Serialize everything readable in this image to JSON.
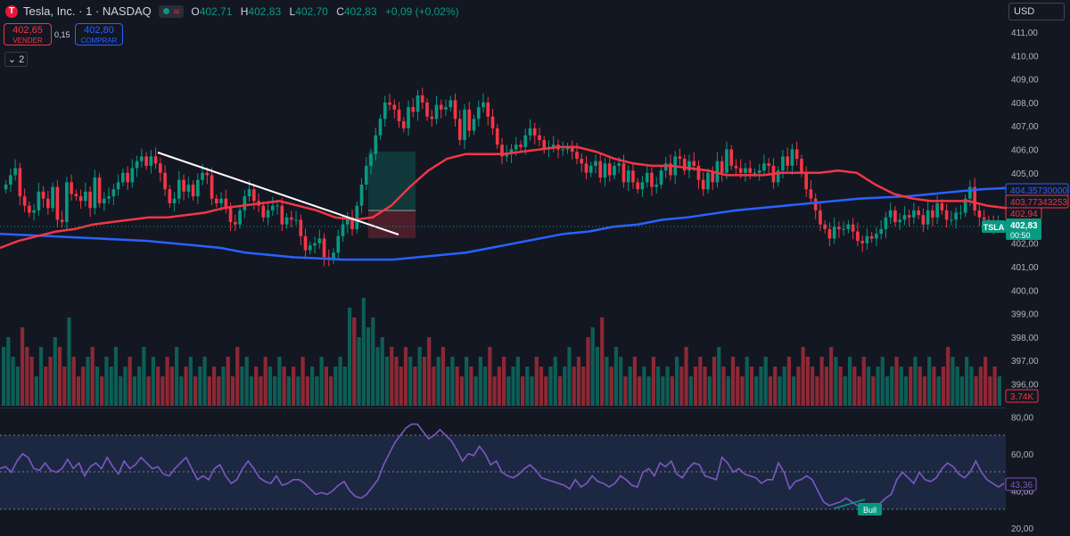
{
  "header": {
    "symbol": "Tesla, Inc. · 1 · NASDAQ",
    "wave_icon": "≈",
    "ohlc": [
      {
        "k": "O",
        "v": "402,71"
      },
      {
        "k": "H",
        "v": "402,83"
      },
      {
        "k": "L",
        "v": "402,70"
      },
      {
        "k": "C",
        "v": "402,83"
      }
    ],
    "change": "+0,09 (+0,02%)"
  },
  "trade": {
    "sell_price": "402,65",
    "sell_label": "VENDER",
    "spread": "0,15",
    "buy_price": "402,80",
    "buy_label": "COMPRAR"
  },
  "collapse_label": "2",
  "currency": "USD",
  "colors": {
    "background": "#131722",
    "up": "#089981",
    "down": "#f23645",
    "ma_fast": "#f23645",
    "ma_slow": "#2962ff",
    "rsi_line": "#7e57c2",
    "rsi_band": "#1e2a46"
  },
  "price_axis": {
    "labels": [
      "411,00",
      "410,00",
      "409,00",
      "408,00",
      "407,00",
      "406,00",
      "405,00",
      "404,00",
      "403,00",
      "402,00",
      "401,00",
      "400,00",
      "399,00",
      "398,00",
      "397,00",
      "396,00"
    ]
  },
  "price_tags": {
    "ma_slow": "404,35730000",
    "ma_fast": "403,77343253",
    "last_close": "402,94",
    "symbol": "TSLA",
    "current": "402,83",
    "countdown": "00:50",
    "volume": "3,74K",
    "rsi": "43,36"
  },
  "rsi_axis": {
    "labels": [
      "80,00",
      "60,00",
      "40,00",
      "20,00"
    ]
  },
  "rsi_badge": "Bull",
  "chart_data": {
    "type": "candlestick",
    "ylim": [
      395.3,
      411.4
    ],
    "candles": {
      "close": [
        404.5,
        404.9,
        405.2,
        404.0,
        403.6,
        403.3,
        403.4,
        404.2,
        403.9,
        403.5,
        404.4,
        403.0,
        402.9,
        404.6,
        404.1,
        404.0,
        403.8,
        404.2,
        403.5,
        404.8,
        403.7,
        403.9,
        404.0,
        404.3,
        404.6,
        405.0,
        404.6,
        405.2,
        405.5,
        405.7,
        405.3,
        405.7,
        405.4,
        405.0,
        404.3,
        403.7,
        403.9,
        404.7,
        404.2,
        404.5,
        404.0,
        404.7,
        405.0,
        404.9,
        403.9,
        403.7,
        403.9,
        403.5,
        402.9,
        402.8,
        403.4,
        404.0,
        404.3,
        403.8,
        403.6,
        403.1,
        403.4,
        403.6,
        403.6,
        402.8,
        403.1,
        403.0,
        403.0,
        402.3,
        401.7,
        401.9,
        402.0,
        402.2,
        401.4,
        401.3,
        401.6,
        402.3,
        402.8,
        403.1,
        402.6,
        403.6,
        404.5,
        405.3,
        405.8,
        406.6,
        407.3,
        408.0,
        407.9,
        407.7,
        407.2,
        406.9,
        407.8,
        407.6,
        408.3,
        408.0,
        407.4,
        407.3,
        407.9,
        407.7,
        407.8,
        408.1,
        407.3,
        406.4,
        407.7,
        406.8,
        407.3,
        407.8,
        408.0,
        407.4,
        406.9,
        406.2,
        405.7,
        405.8,
        406.0,
        406.2,
        406.1,
        406.6,
        406.9,
        406.6,
        406.4,
        406.0,
        406.1,
        406.2,
        406.0,
        406.0,
        406.1,
        405.9,
        405.6,
        405.4,
        405.0,
        405.3,
        405.5,
        404.8,
        405.4,
        404.9,
        405.3,
        405.4,
        404.6,
        405.1,
        404.6,
        404.3,
        404.6,
        405.0,
        404.4,
        404.5,
        405.1,
        405.4,
        404.9,
        405.7,
        405.6,
        405.1,
        405.5,
        405.3,
        404.7,
        404.3,
        405.0,
        404.6,
        405.5,
        405.0,
        406.0,
        405.3,
        405.2,
        405.0,
        405.2,
        405.0,
        405.0,
        405.1,
        405.4,
        405.3,
        404.6,
        405.1,
        405.7,
        405.3,
        406.0,
        405.6,
        405.0,
        404.3,
        403.9,
        403.4,
        402.8,
        402.6,
        402.2,
        402.7,
        402.6,
        402.6,
        402.8,
        402.5,
        402.1,
        402.0,
        402.3,
        402.2,
        402.4,
        402.6,
        403.1,
        403.4,
        402.9,
        403.0,
        403.2,
        403.1,
        403.4,
        403.2,
        402.8,
        403.4,
        403.1,
        403.7,
        403.4,
        403.0,
        403.0,
        403.3,
        403.3,
        403.9,
        404.4,
        403.4,
        403.1,
        403.0,
        402.9,
        402.7,
        402.8
      ]
    },
    "ma_fast_line": [
      401.8,
      402.1,
      402.3,
      402.5,
      402.6,
      402.8,
      402.9,
      403.0,
      403.1,
      403.1,
      403.2,
      403.3,
      403.5,
      403.6,
      403.7,
      403.8,
      403.6,
      403.4,
      403.1,
      403.0,
      403.1,
      403.6,
      404.4,
      405.1,
      405.6,
      405.8,
      405.8,
      405.8,
      405.9,
      406.0,
      406.1,
      406.1,
      405.9,
      405.6,
      405.4,
      405.3,
      405.3,
      405.2,
      405.1,
      404.9,
      404.9,
      404.9,
      405.0,
      405.0,
      405.0,
      405.1,
      405.0,
      404.5,
      404.1,
      403.9,
      403.8,
      403.8,
      403.8,
      403.6,
      403.5
    ],
    "ma_slow_line": [
      402.4,
      402.35,
      402.3,
      402.25,
      402.2,
      402.15,
      402.1,
      402.0,
      401.9,
      401.8,
      401.6,
      401.5,
      401.4,
      401.35,
      401.3,
      401.3,
      401.3,
      401.4,
      401.5,
      401.6,
      401.8,
      402.0,
      402.2,
      402.4,
      402.5,
      402.7,
      402.8,
      403.0,
      403.1,
      403.25,
      403.4,
      403.5,
      403.6,
      403.7,
      403.8,
      403.9,
      403.95,
      404.0,
      404.1,
      404.2,
      404.3,
      404.35
    ],
    "volume": [
      0.6,
      0.7,
      0.5,
      0.4,
      0.8,
      0.6,
      0.5,
      0.3,
      0.6,
      0.4,
      0.5,
      0.7,
      0.6,
      0.4,
      0.9,
      0.5,
      0.3,
      0.4,
      0.5,
      0.6,
      0.4,
      0.3,
      0.5,
      0.4,
      0.6,
      0.3,
      0.4,
      0.5,
      0.3,
      0.4,
      0.6,
      0.3,
      0.5,
      0.4,
      0.3,
      0.5,
      0.4,
      0.6,
      0.3,
      0.4,
      0.5,
      0.3,
      0.4,
      0.5,
      0.3,
      0.4,
      0.3,
      0.4,
      0.5,
      0.3,
      0.6,
      0.4,
      0.5,
      0.3,
      0.4,
      0.3,
      0.5,
      0.4,
      0.3,
      0.5,
      0.4,
      0.3,
      0.4,
      0.3,
      0.5,
      0.3,
      0.4,
      0.3,
      0.5,
      0.4,
      0.3,
      0.4,
      0.5,
      0.4,
      1.0,
      0.9,
      0.7,
      1.1,
      0.8,
      0.9,
      0.6,
      0.7,
      0.5,
      0.6,
      0.5,
      0.4,
      0.6,
      0.5,
      0.4,
      0.6,
      0.5,
      0.7,
      0.4,
      0.5,
      0.6,
      0.4,
      0.5,
      0.4,
      0.3,
      0.5,
      0.4,
      0.3,
      0.5,
      0.4,
      0.6,
      0.3,
      0.4,
      0.5,
      0.3,
      0.4,
      0.5,
      0.3,
      0.4,
      0.3,
      0.5,
      0.4,
      0.3,
      0.4,
      0.5,
      0.3,
      0.4,
      0.6,
      0.4,
      0.5,
      0.4,
      0.7,
      0.8,
      0.6,
      0.9,
      0.5,
      0.4,
      0.6,
      0.5,
      0.3,
      0.4,
      0.5,
      0.3,
      0.4,
      0.3,
      0.5,
      0.4,
      0.3,
      0.4,
      0.3,
      0.5,
      0.4,
      0.6,
      0.3,
      0.4,
      0.5,
      0.4,
      0.3,
      0.5,
      0.6,
      0.4,
      0.3,
      0.5,
      0.4,
      0.3,
      0.5,
      0.4,
      0.3,
      0.4,
      0.5,
      0.3,
      0.4,
      0.3,
      0.4,
      0.5,
      0.3,
      0.4,
      0.6,
      0.5,
      0.4,
      0.3,
      0.5,
      0.4,
      0.6,
      0.5,
      0.4,
      0.3,
      0.5,
      0.4,
      0.3,
      0.5,
      0.4,
      0.3,
      0.4,
      0.5,
      0.3,
      0.4,
      0.5,
      0.4,
      0.3,
      0.4,
      0.5,
      0.4,
      0.3,
      0.5,
      0.4,
      0.3,
      0.4,
      0.6,
      0.5,
      0.4,
      0.3,
      0.5,
      0.4,
      0.3,
      0.4,
      0.5,
      0.3,
      0.4,
      0.3
    ],
    "rsi": {
      "ylim": [
        20,
        80
      ],
      "upper": 70,
      "lower": 30,
      "mid": 50,
      "values": [
        52,
        53,
        50,
        56,
        60,
        58,
        52,
        51,
        55,
        51,
        50,
        52,
        57,
        52,
        55,
        48,
        53,
        55,
        52,
        58,
        53,
        49,
        56,
        52,
        54,
        58,
        55,
        52,
        53,
        49,
        48,
        52,
        55,
        58,
        52,
        46,
        48,
        46,
        52,
        54,
        48,
        44,
        46,
        52,
        56,
        52,
        47,
        45,
        44,
        48,
        43,
        44,
        46,
        46,
        44,
        41,
        38,
        39,
        38,
        40,
        43,
        45,
        40,
        37,
        36,
        38,
        42,
        46,
        54,
        60,
        66,
        70,
        74,
        76,
        76,
        72,
        68,
        70,
        73,
        70,
        67,
        62,
        56,
        60,
        59,
        64,
        60,
        54,
        56,
        50,
        48,
        47,
        49,
        52,
        54,
        51,
        47,
        46,
        45,
        44,
        43,
        41,
        46,
        42,
        44,
        48,
        45,
        44,
        42,
        44,
        48,
        46,
        43,
        42,
        50,
        52,
        48,
        55,
        53,
        56,
        49,
        47,
        52,
        55,
        54,
        48,
        47,
        46,
        58,
        55,
        50,
        52,
        49,
        48,
        47,
        44,
        46,
        46,
        55,
        50,
        41,
        45,
        46,
        48,
        46,
        40,
        34,
        32,
        33,
        34,
        36,
        34,
        32,
        30,
        32,
        31,
        33,
        36,
        38,
        46,
        50,
        47,
        44,
        50,
        46,
        45,
        47,
        52,
        55,
        53,
        49,
        47,
        50,
        56,
        50,
        46,
        44,
        42,
        44
      ]
    }
  }
}
